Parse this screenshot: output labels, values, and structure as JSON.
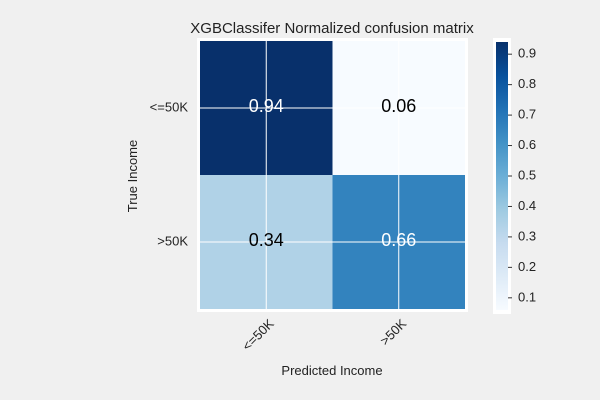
{
  "chart_data": {
    "type": "heatmap",
    "title": "XGBClassifer Normalized confusion matrix",
    "xlabel": "Predicted Income",
    "ylabel": "True Income",
    "x_categories": [
      "<=50K",
      ">50K"
    ],
    "y_categories": [
      "<=50K",
      ">50K"
    ],
    "values": [
      [
        0.94,
        0.06
      ],
      [
        0.34,
        0.66
      ]
    ],
    "cell_labels": [
      [
        "0.94",
        "0.06"
      ],
      [
        "0.34",
        "0.66"
      ]
    ],
    "colormap": "Blues",
    "color_range": [
      0.06,
      0.94
    ],
    "colorbar_ticks": [
      "0.1",
      "0.2",
      "0.3",
      "0.4",
      "0.5",
      "0.6",
      "0.7",
      "0.8",
      "0.9"
    ],
    "grid": true,
    "colors": {
      "background": "#f0f0f0",
      "grid": "#ffffff",
      "text_dark": "#000000",
      "text_light": "#ffffff"
    }
  }
}
